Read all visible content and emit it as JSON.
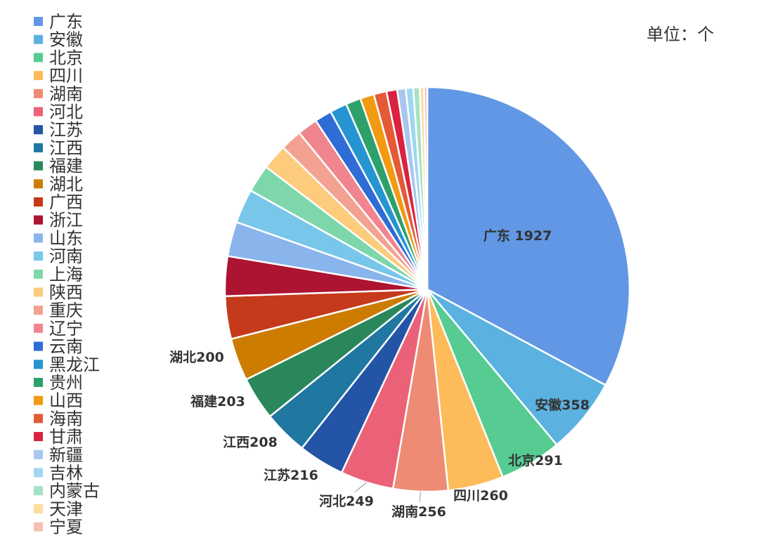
{
  "unit_label": "单位：个",
  "chart_data": {
    "type": "pie",
    "legend_position": "left",
    "categories": [
      "广东",
      "安徽",
      "北京",
      "四川",
      "湖南",
      "河北",
      "江苏",
      "江西",
      "福建",
      "湖北",
      "广西",
      "浙江",
      "山东",
      "河南",
      "上海",
      "陕西",
      "重庆",
      "辽宁",
      "云南",
      "黑龙江",
      "贵州",
      "山西",
      "海南",
      "甘肃",
      "新疆",
      "吉林",
      "内蒙古",
      "天津",
      "宁夏"
    ],
    "values": [
      1927,
      358,
      291,
      260,
      256,
      249,
      216,
      208,
      203,
      200,
      200,
      186,
      162,
      160,
      130,
      120,
      100,
      95,
      80,
      80,
      70,
      65,
      60,
      50,
      40,
      35,
      30,
      20,
      15
    ],
    "colors": [
      "#6197E5",
      "#5BB2E0",
      "#56CB92",
      "#FDBB59",
      "#EE8B74",
      "#EB6278",
      "#2454A6",
      "#1F77A2",
      "#2A875B",
      "#CC7D00",
      "#C43A1B",
      "#AD1431",
      "#8AB4EC",
      "#79C6EB",
      "#7DD7AA",
      "#FDCB7C",
      "#F3A292",
      "#F0858F",
      "#2E6CD6",
      "#2595D1",
      "#2EA06C",
      "#F29A12",
      "#E55A36",
      "#D92340",
      "#A8C6F0",
      "#A0D7F0",
      "#A4E3C3",
      "#FEDB9E",
      "#F6BFB0"
    ],
    "data_labels": [
      {
        "category": "广东",
        "text": "广东 1927"
      },
      {
        "category": "安徽",
        "text": "安徽358"
      },
      {
        "category": "北京",
        "text": "北京291"
      },
      {
        "category": "四川",
        "text": "四川260"
      },
      {
        "category": "湖南",
        "text": "湖南256"
      },
      {
        "category": "河北",
        "text": "河北249"
      },
      {
        "category": "江苏",
        "text": "江苏216"
      },
      {
        "category": "江西",
        "text": "江西208"
      },
      {
        "category": "福建",
        "text": "福建203"
      },
      {
        "category": "湖北",
        "text": "湖北200"
      }
    ]
  }
}
